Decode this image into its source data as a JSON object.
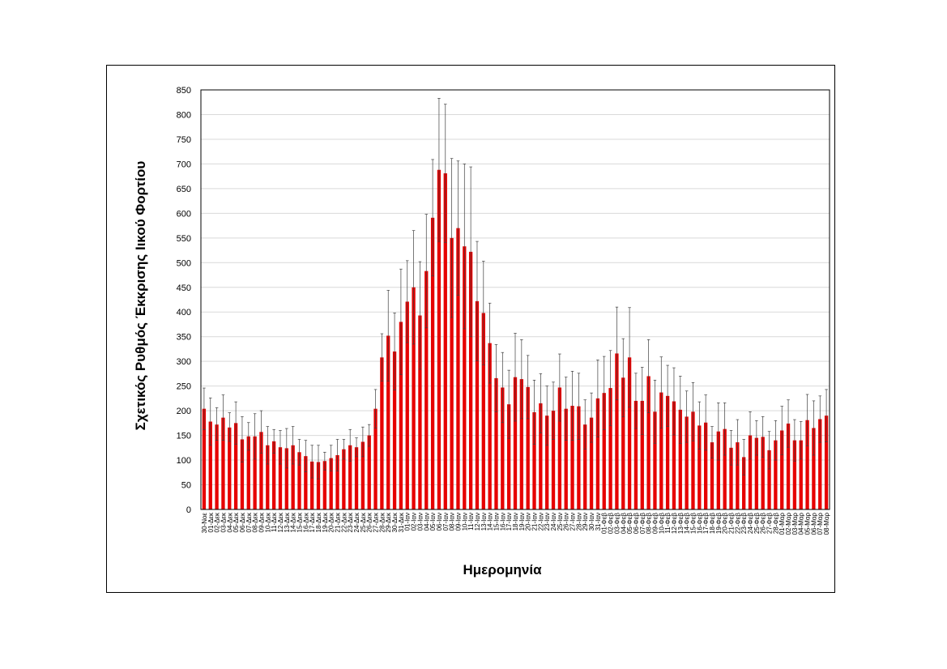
{
  "chart_data": {
    "type": "bar",
    "xlabel": "Ημερομηνία",
    "ylabel": "Σχετικός Ρυθμός Έκκρισης Ιικού Φορτίου",
    "ylim": [
      0,
      850
    ],
    "yticks": [
      0,
      50,
      100,
      150,
      200,
      250,
      300,
      350,
      400,
      450,
      500,
      550,
      600,
      650,
      700,
      750,
      800,
      850
    ],
    "grid": true,
    "legend": "none",
    "bar_color": "#e60000",
    "categories": [
      "30-Νοε",
      "01-Δεκ",
      "02-Δεκ",
      "03-Δεκ",
      "04-Δεκ",
      "05-Δεκ",
      "06-Δεκ",
      "07-Δεκ",
      "08-Δεκ",
      "09-Δεκ",
      "10-Δεκ",
      "11-Δεκ",
      "12-Δεκ",
      "13-Δεκ",
      "14-Δεκ",
      "15-Δεκ",
      "16-Δεκ",
      "17-Δεκ",
      "18-Δεκ",
      "19-Δεκ",
      "20-Δεκ",
      "21-Δεκ",
      "22-Δεκ",
      "23-Δεκ",
      "24-Δεκ",
      "25-Δεκ",
      "26-Δεκ",
      "27-Δεκ",
      "28-Δεκ",
      "29-Δεκ",
      "30-Δεκ",
      "31-Δεκ",
      "01-Ιαν",
      "02-Ιαν",
      "03-Ιαν",
      "04-Ιαν",
      "05-Ιαν",
      "06-Ιαν",
      "07-Ιαν",
      "08-Ιαν",
      "09-Ιαν",
      "10-Ιαν",
      "11-Ιαν",
      "12-Ιαν",
      "13-Ιαν",
      "14-Ιαν",
      "15-Ιαν",
      "16-Ιαν",
      "17-Ιαν",
      "18-Ιαν",
      "19-Ιαν",
      "20-Ιαν",
      "21-Ιαν",
      "22-Ιαν",
      "23-Ιαν",
      "24-Ιαν",
      "25-Ιαν",
      "26-Ιαν",
      "27-Ιαν",
      "28-Ιαν",
      "29-Ιαν",
      "30-Ιαν",
      "31-Ιαν",
      "01-Φεβ",
      "02-Φεβ",
      "03-Φεβ",
      "04-Φεβ",
      "05-Φεβ",
      "06-Φεβ",
      "07-Φεβ",
      "08-Φεβ",
      "09-Φεβ",
      "10-Φεβ",
      "11-Φεβ",
      "12-Φεβ",
      "13-Φεβ",
      "14-Φεβ",
      "15-Φεβ",
      "16-Φεβ",
      "17-Φεβ",
      "18-Φεβ",
      "19-Φεβ",
      "20-Φεβ",
      "21-Φεβ",
      "22-Φεβ",
      "23-Φεβ",
      "24-Φεβ",
      "25-Φεβ",
      "26-Φεβ",
      "27-Φεβ",
      "28-Φεβ",
      "01-Μαρ",
      "02-Μαρ",
      "03-Μαρ",
      "04-Μαρ",
      "05-Μαρ",
      "06-Μαρ",
      "07-Μαρ",
      "08-Μαρ"
    ],
    "values": [
      204,
      178,
      172,
      186,
      166,
      175,
      142,
      148,
      148,
      157,
      130,
      138,
      126,
      124,
      130,
      116,
      108,
      97,
      96,
      98,
      104,
      110,
      122,
      130,
      126,
      137,
      150,
      204,
      308,
      352,
      320,
      380,
      421,
      450,
      393,
      483,
      591,
      688,
      681,
      550,
      570,
      533,
      522,
      422,
      398,
      337,
      266,
      247,
      213,
      268,
      264,
      248,
      197,
      215,
      190,
      200,
      247,
      204,
      210,
      209,
      172,
      186,
      225,
      236,
      246,
      316,
      267,
      308,
      220,
      220,
      270,
      198,
      237,
      230,
      219,
      202,
      188,
      198,
      170,
      176,
      136,
      158,
      163,
      125,
      136,
      106,
      150,
      145,
      147,
      120,
      140,
      160,
      174,
      140,
      140,
      181,
      165,
      183,
      190
    ],
    "error_upper": [
      246,
      226,
      206,
      232,
      196,
      218,
      188,
      176,
      194,
      200,
      168,
      162,
      160,
      164,
      168,
      142,
      140,
      130,
      130,
      116,
      130,
      142,
      142,
      162,
      145,
      167,
      172,
      243,
      356,
      444,
      398,
      487,
      504,
      565,
      502,
      598,
      709,
      833,
      821,
      711,
      706,
      700,
      694,
      543,
      503,
      418,
      334,
      318,
      282,
      357,
      344,
      312,
      262,
      275,
      250,
      258,
      315,
      268,
      280,
      276,
      222,
      236,
      303,
      310,
      322,
      410,
      346,
      409,
      276,
      288,
      344,
      262,
      309,
      292,
      287,
      270,
      240,
      257,
      218,
      232,
      168,
      216,
      216,
      160,
      182,
      142,
      198,
      180,
      188,
      158,
      180,
      209,
      222,
      182,
      178,
      233,
      220,
      230,
      243
    ],
    "error_lower": [
      162,
      130,
      140,
      140,
      138,
      132,
      96,
      120,
      102,
      114,
      92,
      114,
      92,
      84,
      92,
      90,
      76,
      64,
      62,
      80,
      78,
      78,
      102,
      98,
      107,
      107,
      128,
      165,
      260,
      260,
      242,
      273,
      338,
      335,
      284,
      368,
      473,
      543,
      541,
      389,
      434,
      366,
      350,
      301,
      293,
      256,
      198,
      176,
      144,
      179,
      184,
      184,
      132,
      155,
      130,
      142,
      179,
      140,
      140,
      142,
      122,
      136,
      147,
      162,
      170,
      222,
      188,
      207,
      164,
      152,
      196,
      134,
      165,
      168,
      151,
      134,
      136,
      139,
      122,
      120,
      104,
      100,
      110,
      90,
      90,
      70,
      102,
      110,
      106,
      82,
      100,
      111,
      126,
      98,
      102,
      129,
      110,
      136,
      137
    ]
  }
}
